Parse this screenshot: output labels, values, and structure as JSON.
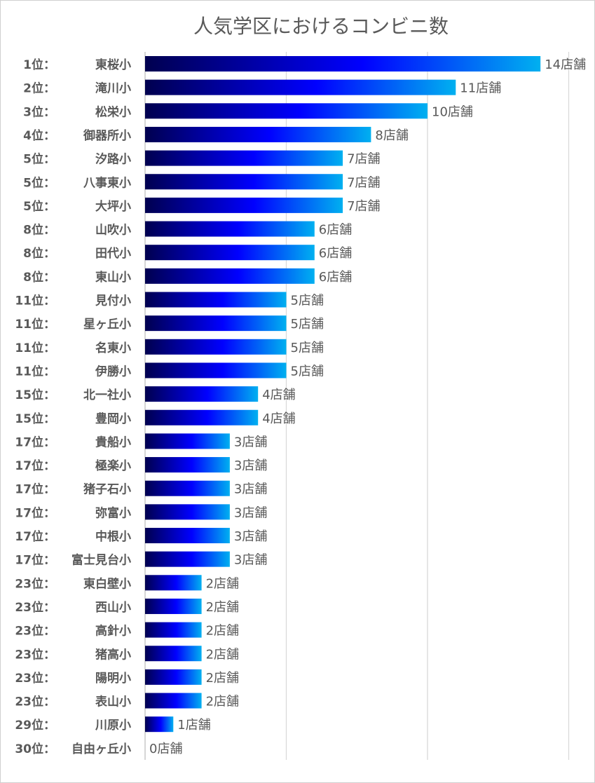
{
  "chart_data": {
    "type": "bar",
    "orientation": "horizontal",
    "title": "人気学区におけるコンビニ数",
    "xlabel": "",
    "ylabel": "",
    "xlim": [
      0,
      15
    ],
    "grid_step": 5,
    "grid": true,
    "value_suffix": "店舗",
    "gradient_colors": [
      "#00004f",
      "#0000ff",
      "#00b0f0"
    ],
    "categories": [
      {
        "rank": "1位：",
        "name": "東桜小"
      },
      {
        "rank": "2位：",
        "name": "滝川小"
      },
      {
        "rank": "3位：",
        "name": "松栄小"
      },
      {
        "rank": "4位：",
        "name": "御器所小"
      },
      {
        "rank": "5位：",
        "name": "汐路小"
      },
      {
        "rank": "5位：",
        "name": "八事東小"
      },
      {
        "rank": "5位：",
        "name": "大坪小"
      },
      {
        "rank": "8位：",
        "name": "山吹小"
      },
      {
        "rank": "8位：",
        "name": "田代小"
      },
      {
        "rank": "8位：",
        "name": "東山小"
      },
      {
        "rank": "11位：",
        "name": "見付小"
      },
      {
        "rank": "11位：",
        "name": "星ヶ丘小"
      },
      {
        "rank": "11位：",
        "name": "名東小"
      },
      {
        "rank": "11位：",
        "name": "伊勝小"
      },
      {
        "rank": "15位：",
        "name": "北一社小"
      },
      {
        "rank": "15位：",
        "name": "豊岡小"
      },
      {
        "rank": "17位：",
        "name": "貴船小"
      },
      {
        "rank": "17位：",
        "name": "極楽小"
      },
      {
        "rank": "17位：",
        "name": "猪子石小"
      },
      {
        "rank": "17位：",
        "name": "弥富小"
      },
      {
        "rank": "17位：",
        "name": "中根小"
      },
      {
        "rank": "17位：",
        "name": "富士見台小"
      },
      {
        "rank": "23位：",
        "name": "東白壁小"
      },
      {
        "rank": "23位：",
        "name": "西山小"
      },
      {
        "rank": "23位：",
        "name": "高針小"
      },
      {
        "rank": "23位：",
        "name": "猪高小"
      },
      {
        "rank": "23位：",
        "name": "陽明小"
      },
      {
        "rank": "23位：",
        "name": "表山小"
      },
      {
        "rank": "29位：",
        "name": "川原小"
      },
      {
        "rank": "30位：",
        "name": "自由ヶ丘小"
      }
    ],
    "values": [
      14,
      11,
      10,
      8,
      7,
      7,
      7,
      6,
      6,
      6,
      5,
      5,
      5,
      5,
      4,
      4,
      3,
      3,
      3,
      3,
      3,
      3,
      2,
      2,
      2,
      2,
      2,
      2,
      1,
      0
    ],
    "data_labels": [
      "14店舗",
      "11店舗",
      "10店舗",
      "8店舗",
      "7店舗",
      "7店舗",
      "7店舗",
      "6店舗",
      "6店舗",
      "6店舗",
      "5店舗",
      "5店舗",
      "5店舗",
      "5店舗",
      "4店舗",
      "4店舗",
      "3店舗",
      "3店舗",
      "3店舗",
      "3店舗",
      "3店舗",
      "3店舗",
      "2店舗",
      "2店舗",
      "2店舗",
      "2店舗",
      "2店舗",
      "2店舗",
      "1店舗",
      "0店舗"
    ]
  }
}
